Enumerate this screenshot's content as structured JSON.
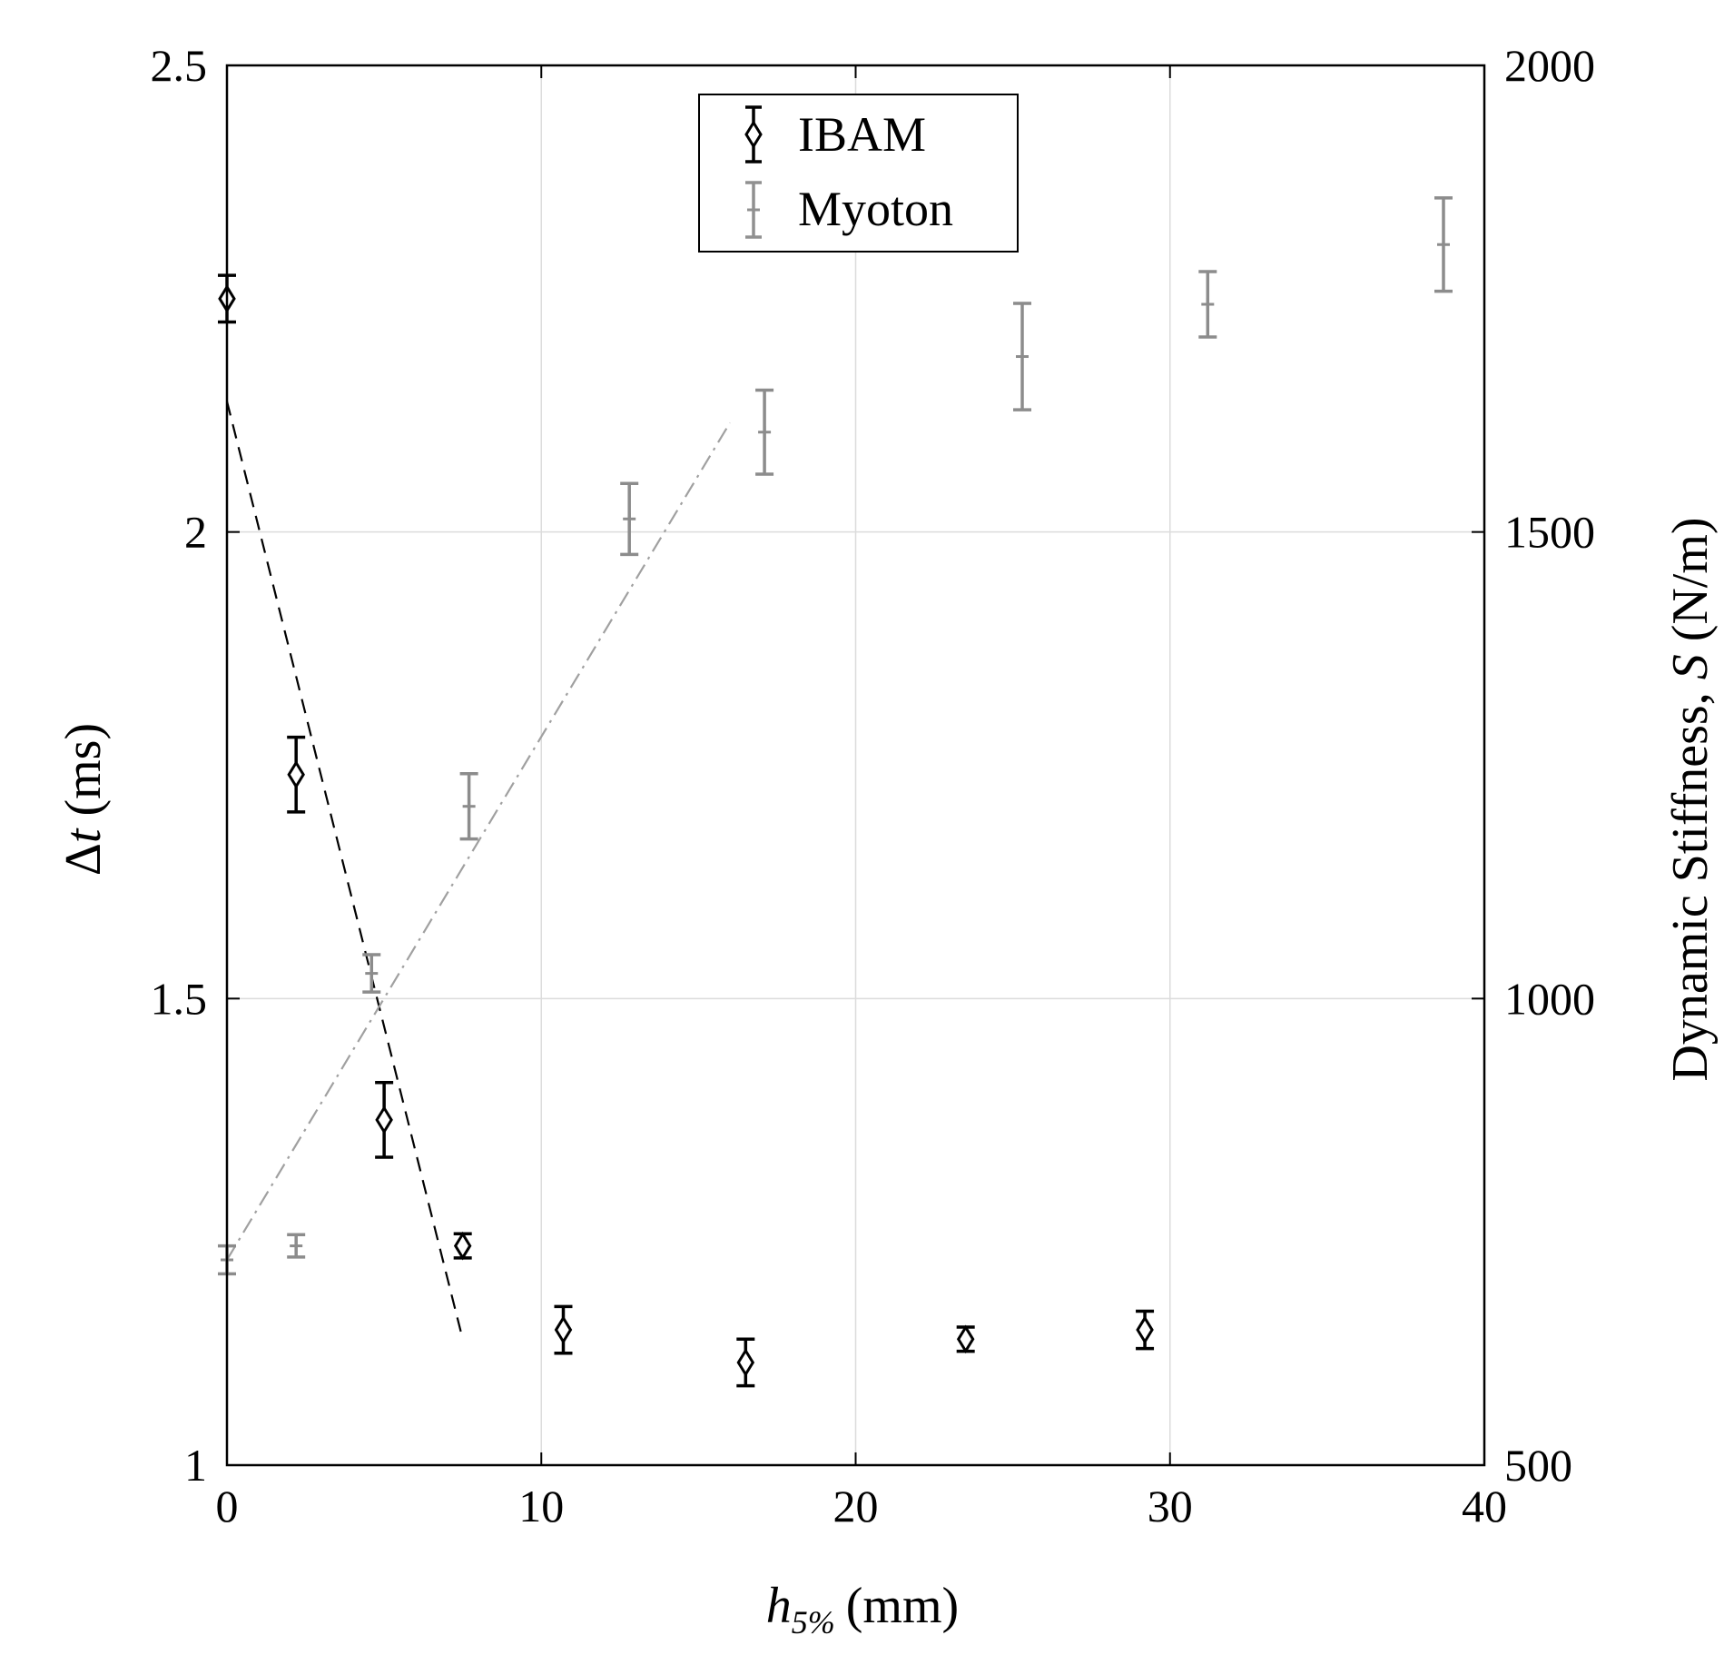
{
  "chart_data": {
    "type": "scatter",
    "title": "",
    "x_axis": {
      "label_main": "h",
      "label_sub": "5%",
      "label_unit": "(mm)",
      "range": [
        0,
        40
      ],
      "ticks": [
        "0",
        "10",
        "20",
        "30",
        "40"
      ],
      "tick_values": [
        0,
        10,
        20,
        30,
        40
      ]
    },
    "y_axis_left": {
      "label_delta": "Δ",
      "label_var": "t",
      "label_unit": "(ms)",
      "range": [
        1,
        2.5
      ],
      "ticks": [
        "1",
        "1.5",
        "2",
        "2.5"
      ],
      "tick_values": [
        1,
        1.5,
        2,
        2.5
      ]
    },
    "y_axis_right": {
      "label_text": "Dynamic Stiffness,",
      "label_var": "S",
      "label_unit": "(N/m)",
      "range": [
        500,
        2000
      ],
      "ticks": [
        "500",
        "1000",
        "1500",
        "2000"
      ],
      "tick_values": [
        500,
        1000,
        1500,
        2000
      ]
    },
    "grid": true,
    "legend_position": "top-center",
    "series": [
      {
        "name": "IBAM",
        "axis": "left",
        "marker": "diamond",
        "color": "#000000",
        "points": [
          {
            "x": 0.0,
            "y": 2.25,
            "err": 0.025
          },
          {
            "x": 2.2,
            "y": 1.74,
            "err": 0.04
          },
          {
            "x": 5.0,
            "y": 1.37,
            "err": 0.04
          },
          {
            "x": 7.5,
            "y": 1.235,
            "err": 0.013
          },
          {
            "x": 10.7,
            "y": 1.145,
            "err": 0.025
          },
          {
            "x": 16.5,
            "y": 1.11,
            "err": 0.025
          },
          {
            "x": 23.5,
            "y": 1.135,
            "err": 0.013
          },
          {
            "x": 29.2,
            "y": 1.145,
            "err": 0.02
          }
        ]
      },
      {
        "name": "Myoton",
        "axis": "right",
        "marker": "plus",
        "color": "#808080",
        "points": [
          {
            "x": 0.0,
            "y": 720,
            "err": 15
          },
          {
            "x": 2.2,
            "y": 735,
            "err": 12
          },
          {
            "x": 4.6,
            "y": 1027,
            "err": 20
          },
          {
            "x": 7.7,
            "y": 1206,
            "err": 35
          },
          {
            "x": 12.8,
            "y": 1514,
            "err": 38
          },
          {
            "x": 17.1,
            "y": 1607,
            "err": 45
          },
          {
            "x": 25.3,
            "y": 1688,
            "err": 57
          },
          {
            "x": 31.2,
            "y": 1744,
            "err": 35
          },
          {
            "x": 38.7,
            "y": 1808,
            "err": 50
          }
        ]
      }
    ],
    "fit_lines": [
      {
        "axis": "left",
        "style": "dashed",
        "color": "#000000",
        "points": [
          [
            0,
            2.14
          ],
          [
            7.5,
            1.135
          ]
        ]
      },
      {
        "axis": "right",
        "style": "dashdot",
        "color": "#a0a0a0",
        "points": [
          [
            0,
            720
          ],
          [
            16,
            1617
          ]
        ]
      }
    ]
  }
}
